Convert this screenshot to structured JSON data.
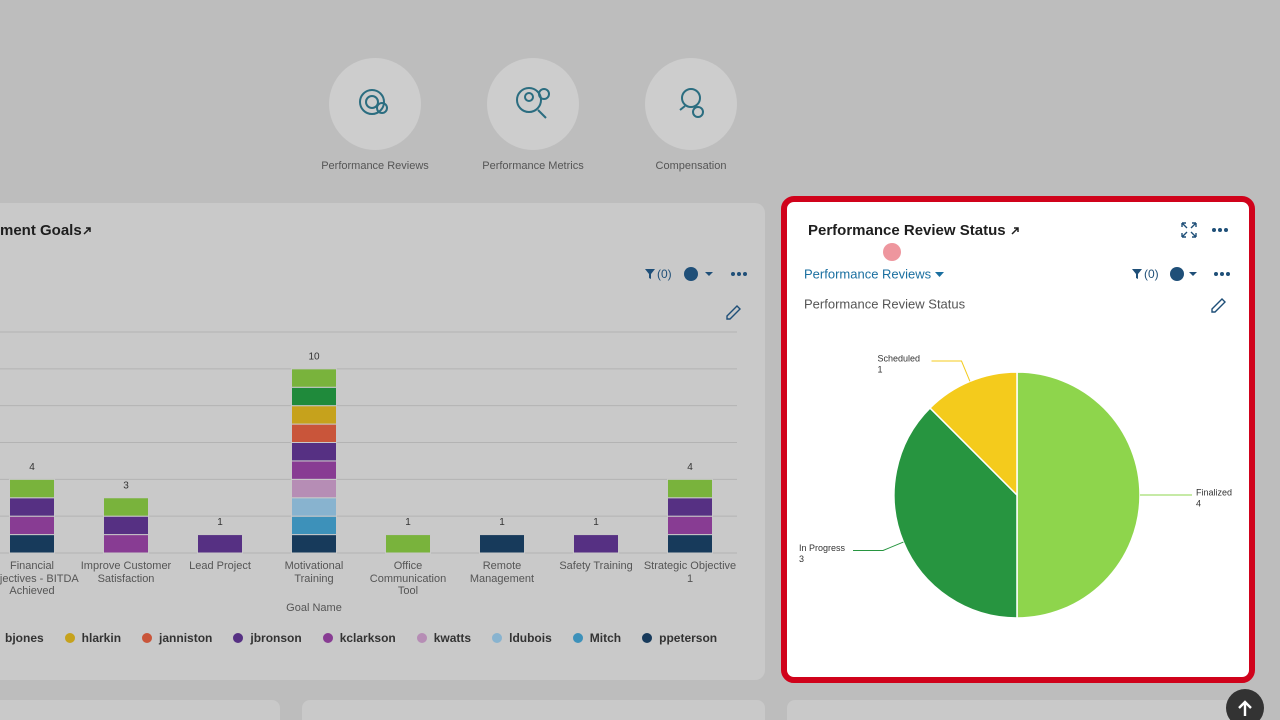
{
  "nav": [
    {
      "label": "Performance Reviews"
    },
    {
      "label": "Performance Metrics"
    },
    {
      "label": "Compensation"
    }
  ],
  "left_panel": {
    "title": "ment Goals",
    "filter_count": "(0)"
  },
  "right_panel": {
    "title": "Performance Review Status",
    "dropdown": "Performance Reviews",
    "filter_count": "(0)"
  },
  "chart_data": [
    {
      "type": "bar",
      "stacked": true,
      "xlabel": "Goal Name",
      "categories": [
        "Financial Objectives - BITDA Achieved",
        "Improve Customer Satisfaction",
        "Lead Project",
        "Motivational Training",
        "Office Communication Tool",
        "Remote Management",
        "Safety Training",
        "Strategic Objective 1"
      ],
      "series": [
        {
          "name": null,
          "color": "#79b33c",
          "values": [
            1,
            1,
            0,
            1,
            1,
            0,
            0,
            1
          ]
        },
        {
          "name": "bjones",
          "color": "#1f8a3b",
          "values": [
            0,
            0,
            0,
            1,
            0,
            0,
            0,
            0
          ]
        },
        {
          "name": "hlarkin",
          "color": "#c6a21c",
          "values": [
            0,
            0,
            0,
            1,
            0,
            0,
            0,
            0
          ]
        },
        {
          "name": "janniston",
          "color": "#c9553a",
          "values": [
            0,
            0,
            0,
            1,
            0,
            0,
            0,
            0
          ]
        },
        {
          "name": "jbronson",
          "color": "#563083",
          "values": [
            1,
            1,
            1,
            1,
            0,
            0,
            1,
            1
          ]
        },
        {
          "name": "kclarkson",
          "color": "#883c93",
          "values": [
            1,
            1,
            0,
            1,
            0,
            0,
            0,
            1
          ]
        },
        {
          "name": "kwatts",
          "color": "#b68db5",
          "values": [
            0,
            0,
            0,
            1,
            0,
            0,
            0,
            0
          ]
        },
        {
          "name": "ldubois",
          "color": "#88b3cf",
          "values": [
            0,
            0,
            0,
            1,
            0,
            0,
            0,
            0
          ]
        },
        {
          "name": "Mitch",
          "color": "#3d91ba",
          "values": [
            0,
            0,
            0,
            1,
            0,
            0,
            0,
            0
          ]
        },
        {
          "name": "ppeterson",
          "color": "#173a5b",
          "values": [
            1,
            0,
            0,
            1,
            0,
            1,
            0,
            1
          ]
        }
      ],
      "totals": [
        4,
        3,
        1,
        10,
        1,
        1,
        1,
        4
      ],
      "ylim": [
        0,
        12
      ],
      "yticks": [
        0,
        2,
        4,
        6,
        8,
        10,
        12
      ],
      "grid": true
    },
    {
      "type": "pie",
      "title": "Performance Review Status",
      "categories": [
        "Finalized",
        "In Progress",
        "Scheduled"
      ],
      "values": [
        4,
        3,
        1
      ],
      "colors": [
        "#8ed54c",
        "#279540",
        "#f4cb1c"
      ]
    }
  ]
}
